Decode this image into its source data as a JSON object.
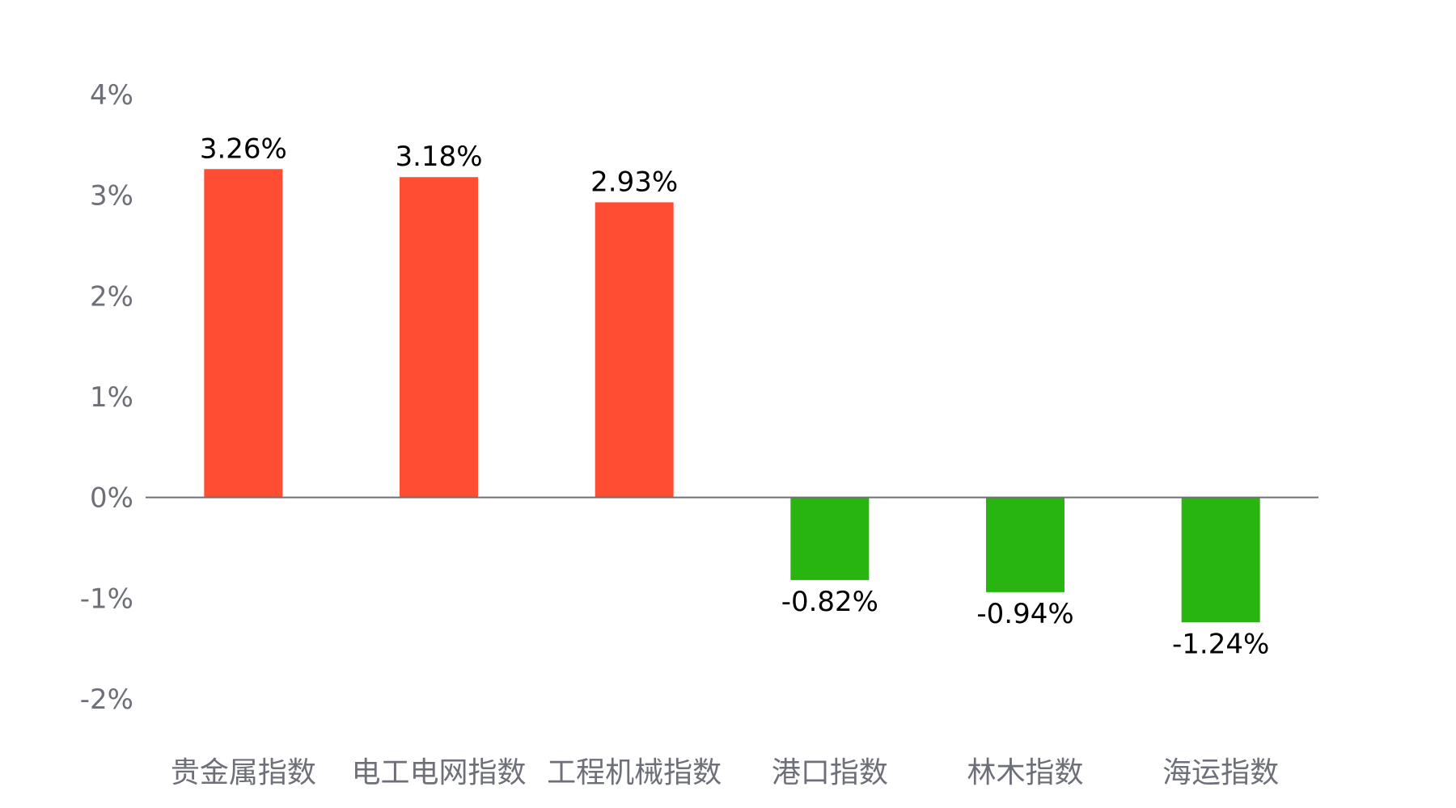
{
  "chart_data": {
    "type": "bar",
    "categories": [
      "贵金属指数",
      "电工电网指数",
      "工程机械指数",
      "港口指数",
      "林木指数",
      "海运指数"
    ],
    "values": [
      3.26,
      3.18,
      2.93,
      -0.82,
      -0.94,
      -1.24
    ],
    "value_labels": [
      "3.26%",
      "3.18%",
      "2.93%",
      "-0.82%",
      "-0.94%",
      "-1.24%"
    ],
    "y_ticks": [
      -2,
      -1,
      0,
      1,
      2,
      3,
      4
    ],
    "y_tick_labels": [
      "-2%",
      "-1%",
      "0%",
      "1%",
      "2%",
      "3%",
      "4%"
    ],
    "ylim": [
      -2,
      4
    ],
    "grid": false,
    "colors": {
      "positive": "#ff4d33",
      "negative": "#28b50f",
      "axis": "#6e7079",
      "tick_text": "#6e7079",
      "data_label_text": "#000000"
    }
  }
}
